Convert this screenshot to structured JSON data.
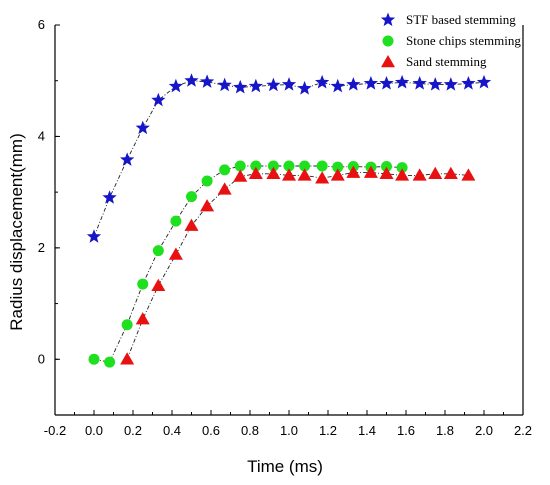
{
  "chart_data": {
    "type": "scatter",
    "xlabel": "Time (ms)",
    "ylabel": "Radius displacement(mm)",
    "xlim": [
      -0.2,
      2.2
    ],
    "ylim": [
      -1,
      6
    ],
    "xticks": [
      "-0.2",
      "0.0",
      "0.2",
      "0.4",
      "0.6",
      "0.8",
      "1.0",
      "1.2",
      "1.4",
      "1.6",
      "1.8",
      "2.0",
      "2.2"
    ],
    "yticks": [
      "0",
      "2",
      "4",
      "6"
    ],
    "legend_position": "top-right",
    "series": [
      {
        "name": "STF based stemming",
        "marker": "star",
        "color": "#1616c8",
        "x": [
          0.0,
          0.08,
          0.17,
          0.25,
          0.33,
          0.42,
          0.5,
          0.58,
          0.67,
          0.75,
          0.83,
          0.92,
          1.0,
          1.08,
          1.17,
          1.25,
          1.33,
          1.42,
          1.5,
          1.58,
          1.67,
          1.75,
          1.83,
          1.92,
          2.0
        ],
        "y": [
          2.2,
          2.9,
          3.58,
          4.15,
          4.65,
          4.9,
          5.0,
          4.98,
          4.92,
          4.88,
          4.9,
          4.92,
          4.93,
          4.86,
          4.97,
          4.9,
          4.93,
          4.95,
          4.95,
          4.97,
          4.95,
          4.93,
          4.93,
          4.95,
          4.97
        ]
      },
      {
        "name": "Stone chips stemming",
        "marker": "circle",
        "color": "#1fe01f",
        "x": [
          0.0,
          0.08,
          0.17,
          0.25,
          0.33,
          0.42,
          0.5,
          0.58,
          0.67,
          0.75,
          0.83,
          0.92,
          1.0,
          1.08,
          1.17,
          1.25,
          1.33,
          1.42,
          1.5,
          1.58
        ],
        "y": [
          0.0,
          -0.05,
          0.62,
          1.35,
          1.95,
          2.48,
          2.92,
          3.2,
          3.4,
          3.47,
          3.47,
          3.47,
          3.47,
          3.47,
          3.47,
          3.45,
          3.46,
          3.45,
          3.46,
          3.44
        ]
      },
      {
        "name": "Sand stemming",
        "marker": "triangle",
        "color": "#e81010",
        "x": [
          0.17,
          0.25,
          0.33,
          0.42,
          0.5,
          0.58,
          0.67,
          0.75,
          0.83,
          0.92,
          1.0,
          1.08,
          1.17,
          1.25,
          1.33,
          1.42,
          1.5,
          1.58,
          1.67,
          1.75,
          1.83,
          1.92
        ],
        "y": [
          0.0,
          0.72,
          1.32,
          1.88,
          2.4,
          2.75,
          3.05,
          3.28,
          3.33,
          3.33,
          3.3,
          3.3,
          3.25,
          3.3,
          3.35,
          3.35,
          3.33,
          3.3,
          3.3,
          3.33,
          3.33,
          3.3
        ]
      }
    ]
  }
}
